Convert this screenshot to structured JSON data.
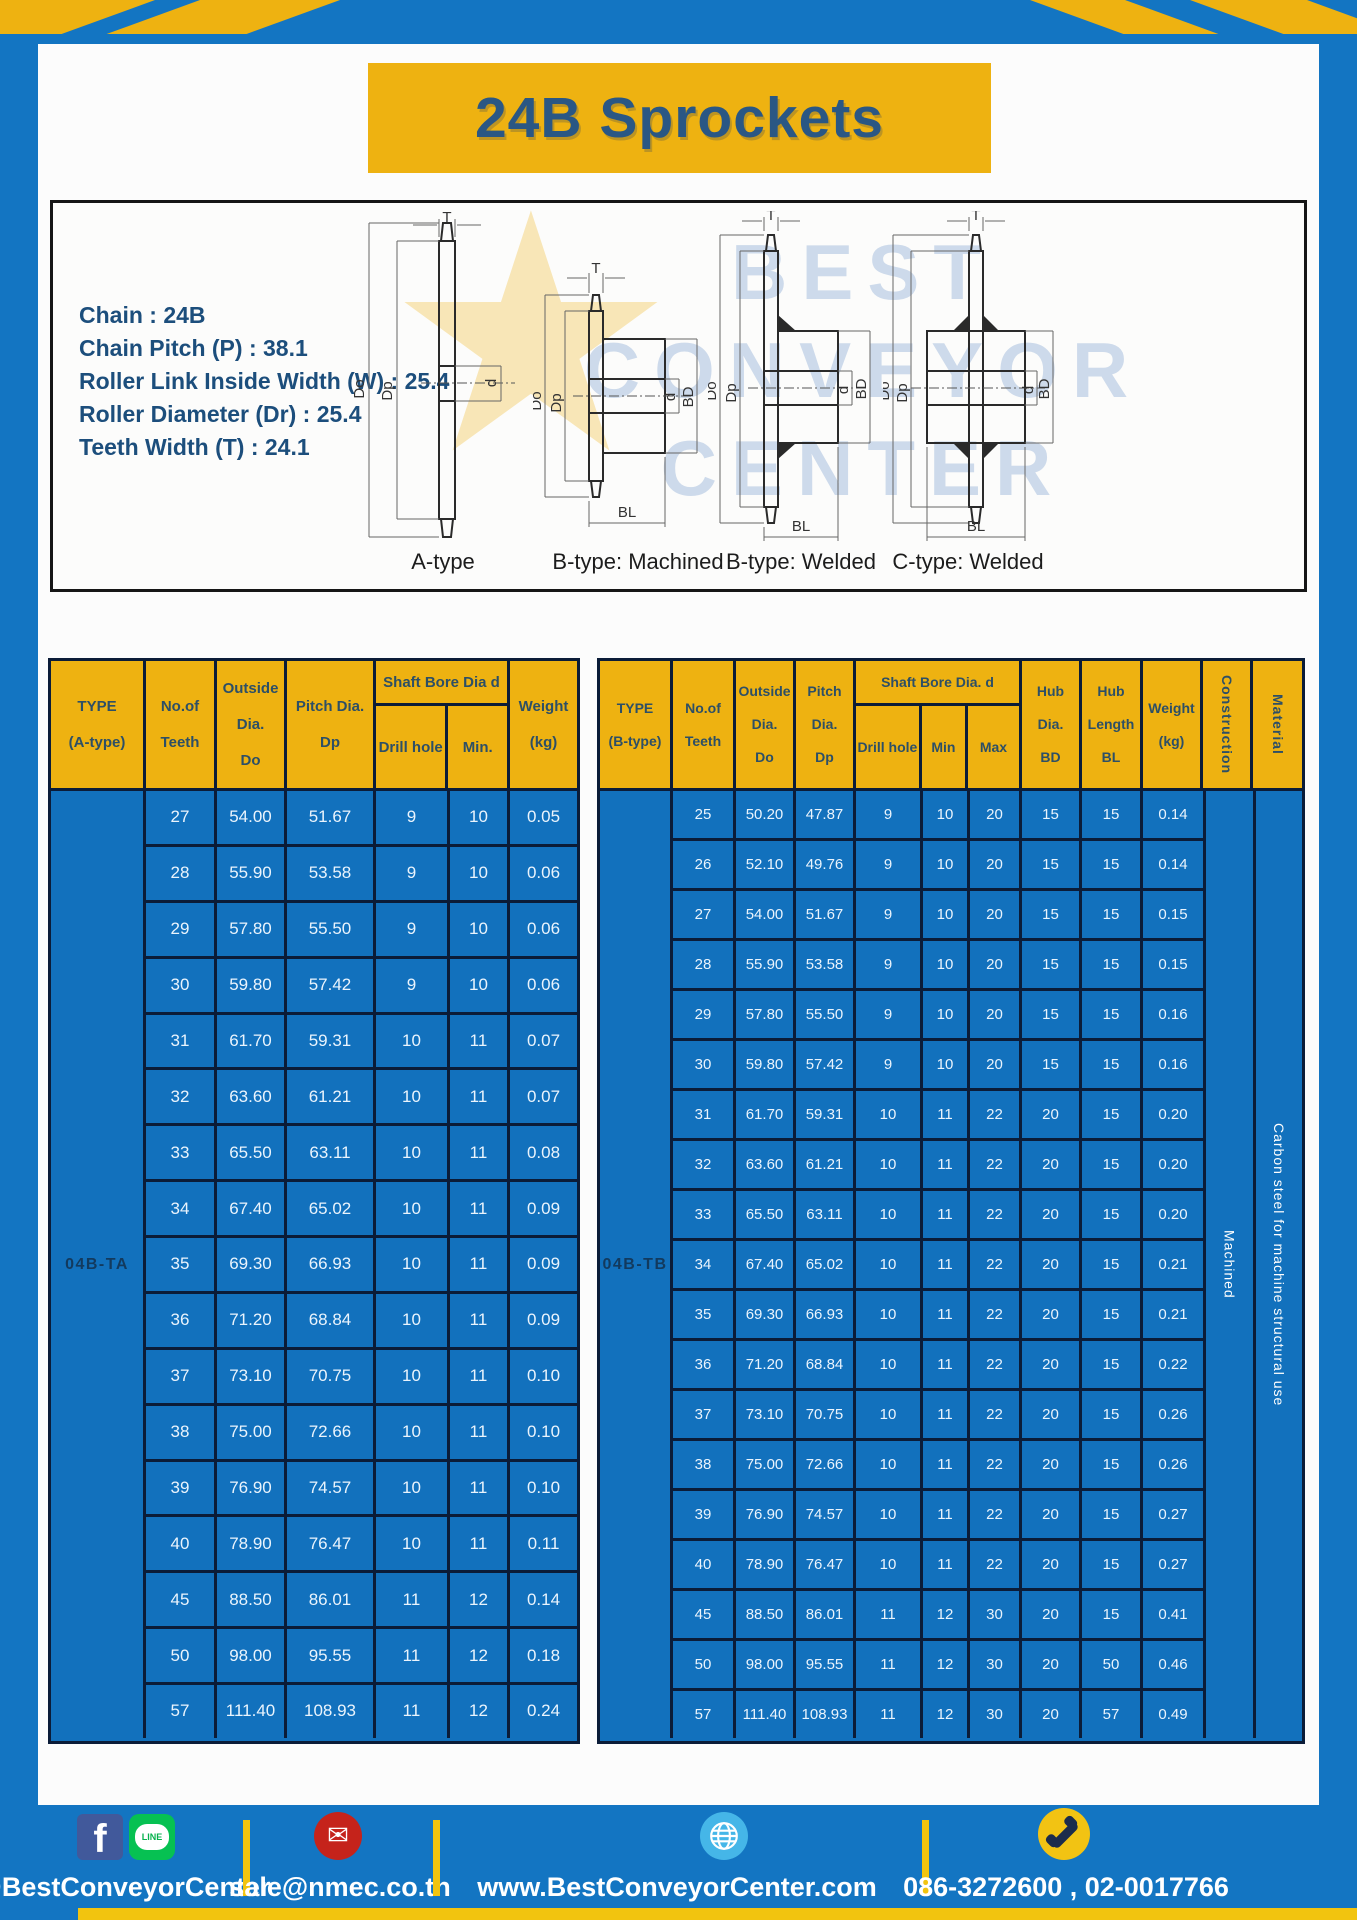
{
  "page": {
    "title": "24B Sprockets"
  },
  "specs": [
    "Chain  : 24B",
    "Chain Pitch (P)  :  38.1",
    "Roller Link Inside Width (W)  :  25.4",
    "Roller Diameter (Dr)  : 25.4",
    "Teeth Width (T)  :  24.1"
  ],
  "watermark": {
    "lines": [
      "BEST",
      "CONVEYOR",
      "CENTER"
    ],
    "star": "★"
  },
  "diagrams": {
    "captions": [
      "A-type",
      "B-type: Machined",
      "B-type: Welded",
      "C-type: Welded"
    ],
    "dims": {
      "t": "T",
      "outside": "Do",
      "pitch": "Dp",
      "bore": "d",
      "hub_dia": "BD",
      "hub_len": "BL"
    }
  },
  "table_a": {
    "type_label": "04B-TA",
    "header": {
      "type1": "TYPE",
      "type2": "(A-type)",
      "teeth1": "No.of",
      "teeth2": "Teeth",
      "do1": "Outside",
      "do2": "Dia.",
      "do3": "Do",
      "dp1": "Pitch Dia.",
      "dp2": "Dp",
      "shaft": "Shaft Bore Dia d",
      "drill": "Drill hole",
      "min": "Min.",
      "w1": "Weight",
      "w2": "(kg)"
    },
    "rows": [
      [
        "27",
        "54.00",
        "51.67",
        "9",
        "10",
        "0.05"
      ],
      [
        "28",
        "55.90",
        "53.58",
        "9",
        "10",
        "0.06"
      ],
      [
        "29",
        "57.80",
        "55.50",
        "9",
        "10",
        "0.06"
      ],
      [
        "30",
        "59.80",
        "57.42",
        "9",
        "10",
        "0.06"
      ],
      [
        "31",
        "61.70",
        "59.31",
        "10",
        "11",
        "0.07"
      ],
      [
        "32",
        "63.60",
        "61.21",
        "10",
        "11",
        "0.07"
      ],
      [
        "33",
        "65.50",
        "63.11",
        "10",
        "11",
        "0.08"
      ],
      [
        "34",
        "67.40",
        "65.02",
        "10",
        "11",
        "0.09"
      ],
      [
        "35",
        "69.30",
        "66.93",
        "10",
        "11",
        "0.09"
      ],
      [
        "36",
        "71.20",
        "68.84",
        "10",
        "11",
        "0.09"
      ],
      [
        "37",
        "73.10",
        "70.75",
        "10",
        "11",
        "0.10"
      ],
      [
        "38",
        "75.00",
        "72.66",
        "10",
        "11",
        "0.10"
      ],
      [
        "39",
        "76.90",
        "74.57",
        "10",
        "11",
        "0.10"
      ],
      [
        "40",
        "78.90",
        "76.47",
        "10",
        "11",
        "0.11"
      ],
      [
        "45",
        "88.50",
        "86.01",
        "11",
        "12",
        "0.14"
      ],
      [
        "50",
        "98.00",
        "95.55",
        "11",
        "12",
        "0.18"
      ],
      [
        "57",
        "111.40",
        "108.93",
        "11",
        "12",
        "0.24"
      ]
    ]
  },
  "table_b": {
    "type_label": "04B-TB",
    "construction_value": "Machined",
    "material_value": "Carbon steel for machine structural use",
    "header": {
      "type1": "TYPE",
      "type2": "(B-type)",
      "teeth1": "No.of",
      "teeth2": "Teeth",
      "do1": "Outside",
      "do2": "Dia.",
      "do3": "Do",
      "dp1": "Pitch",
      "dp2": "Dia.",
      "dp3": "Dp",
      "shaft": "Shaft Bore Dia.  d",
      "drill": "Drill hole",
      "min": "Min",
      "max": "Max",
      "bd1": "Hub",
      "bd2": "Dia.",
      "bd3": "BD",
      "bl1": "Hub",
      "bl2": "Length",
      "bl3": "BL",
      "w1": "Weight",
      "w2": "(kg)",
      "construction": "Construction",
      "material": "Material"
    },
    "rows": [
      [
        "25",
        "50.20",
        "47.87",
        "9",
        "10",
        "20",
        "15",
        "15",
        "0.14"
      ],
      [
        "26",
        "52.10",
        "49.76",
        "9",
        "10",
        "20",
        "15",
        "15",
        "0.14"
      ],
      [
        "27",
        "54.00",
        "51.67",
        "9",
        "10",
        "20",
        "15",
        "15",
        "0.15"
      ],
      [
        "28",
        "55.90",
        "53.58",
        "9",
        "10",
        "20",
        "15",
        "15",
        "0.15"
      ],
      [
        "29",
        "57.80",
        "55.50",
        "9",
        "10",
        "20",
        "15",
        "15",
        "0.16"
      ],
      [
        "30",
        "59.80",
        "57.42",
        "9",
        "10",
        "20",
        "15",
        "15",
        "0.16"
      ],
      [
        "31",
        "61.70",
        "59.31",
        "10",
        "11",
        "22",
        "20",
        "15",
        "0.20"
      ],
      [
        "32",
        "63.60",
        "61.21",
        "10",
        "11",
        "22",
        "20",
        "15",
        "0.20"
      ],
      [
        "33",
        "65.50",
        "63.11",
        "10",
        "11",
        "22",
        "20",
        "15",
        "0.20"
      ],
      [
        "34",
        "67.40",
        "65.02",
        "10",
        "11",
        "22",
        "20",
        "15",
        "0.21"
      ],
      [
        "35",
        "69.30",
        "66.93",
        "10",
        "11",
        "22",
        "20",
        "15",
        "0.21"
      ],
      [
        "36",
        "71.20",
        "68.84",
        "10",
        "11",
        "22",
        "20",
        "15",
        "0.22"
      ],
      [
        "37",
        "73.10",
        "70.75",
        "10",
        "11",
        "22",
        "20",
        "15",
        "0.26"
      ],
      [
        "38",
        "75.00",
        "72.66",
        "10",
        "11",
        "22",
        "20",
        "15",
        "0.26"
      ],
      [
        "39",
        "76.90",
        "74.57",
        "10",
        "11",
        "22",
        "20",
        "15",
        "0.27"
      ],
      [
        "40",
        "78.90",
        "76.47",
        "10",
        "11",
        "22",
        "20",
        "15",
        "0.27"
      ],
      [
        "45",
        "88.50",
        "86.01",
        "11",
        "12",
        "30",
        "20",
        "15",
        "0.41"
      ],
      [
        "50",
        "98.00",
        "95.55",
        "11",
        "12",
        "30",
        "20",
        "50",
        "0.46"
      ],
      [
        "57",
        "111.40",
        "108.93",
        "11",
        "12",
        "30",
        "20",
        "57",
        "0.49"
      ]
    ]
  },
  "footer": {
    "fb_letter": "f",
    "line_label": "LINE",
    "mail_glyph": "✉",
    "items": [
      {
        "icon": "facebook-line-icons",
        "text": "@BestConveyorCenter"
      },
      {
        "icon": "email-icon",
        "text": "sale@nmec.co.th"
      },
      {
        "icon": "globe-icon",
        "text": "www.BestConveyorCenter.com"
      },
      {
        "icon": "phone-icon",
        "text": "086-3272600 , 02-0017766"
      }
    ]
  },
  "colors": {
    "accent_yellow": "#EEB211",
    "frame_blue": "#1375C2",
    "cell_blue": "#1271BD",
    "border_navy": "#0B1C38",
    "title_navy": "#2A5784"
  }
}
